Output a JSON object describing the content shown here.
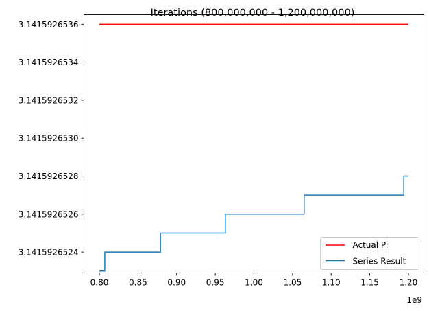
{
  "chart_data": {
    "type": "line",
    "title": "Iterations (800,000,000 - 1,200,000,000)",
    "xlabel": "",
    "ylabel": "",
    "x_offset_label": "1e9",
    "xlim": [
      0.78,
      1.22
    ],
    "ylim": [
      3.14159265229,
      3.14159265365
    ],
    "x_ticks": [
      0.8,
      0.85,
      0.9,
      0.95,
      1.0,
      1.05,
      1.1,
      1.15,
      1.2
    ],
    "x_tick_labels": [
      "0.80",
      "0.85",
      "0.90",
      "0.95",
      "1.00",
      "1.05",
      "1.10",
      "1.15",
      "1.20"
    ],
    "y_ticks": [
      3.1415926524,
      3.1415926526,
      3.1415926528,
      3.141592653,
      3.1415926532,
      3.1415926534,
      3.1415926536
    ],
    "y_tick_labels": [
      "3.1415926524",
      "3.1415926526",
      "3.1415926528",
      "3.1415926530",
      "3.1415926532",
      "3.1415926534",
      "3.1415926536"
    ],
    "grid": false,
    "legend_position": "lower-right",
    "series": [
      {
        "name": "Actual Pi",
        "color": "#ff0000",
        "x": [
          0.8,
          1.2
        ],
        "y": [
          3.1415926536,
          3.1415926536
        ]
      },
      {
        "name": "Series Result",
        "color": "#1f77b4",
        "step": true,
        "x": [
          0.8,
          0.807,
          0.879,
          0.963,
          1.065,
          1.194,
          1.2
        ],
        "y": [
          3.1415926523,
          3.1415926524,
          3.1415926525,
          3.1415926526,
          3.1415926527,
          3.1415926528,
          3.1415926528
        ]
      }
    ]
  }
}
